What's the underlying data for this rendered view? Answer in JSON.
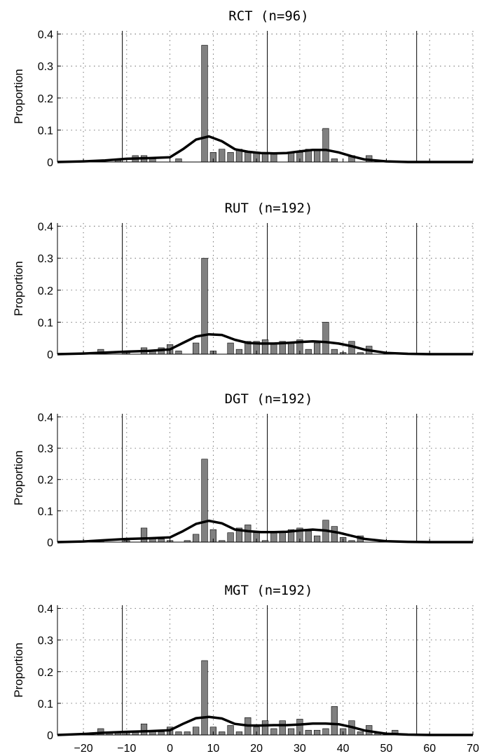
{
  "chart_data": [
    {
      "type": "bar",
      "title": "RCT (n=96)",
      "ylabel": "Proportion",
      "xlim": [
        -26,
        70
      ],
      "ylim": [
        0,
        0.41
      ],
      "yticks": [
        0,
        0.1,
        0.2,
        0.3,
        0.4
      ],
      "xticks": [
        -20,
        -10,
        0,
        10,
        20,
        30,
        40,
        50,
        60,
        70
      ],
      "show_xtick_labels": false,
      "grid": true,
      "vertical_lines": [
        -11,
        22.5,
        57
      ],
      "bar_width": 1.4,
      "bars": {
        "x": [
          -14,
          -12,
          -10,
          -8,
          -6,
          -4,
          -2,
          0,
          2,
          4,
          6,
          8,
          10,
          12,
          14,
          16,
          18,
          20,
          22,
          24,
          26,
          28,
          30,
          32,
          34,
          36,
          38,
          40,
          42,
          44,
          46,
          48
        ],
        "values": [
          0,
          0.005,
          0,
          0.02,
          0.02,
          0.01,
          0,
          0,
          0.01,
          0,
          0,
          0.365,
          0.03,
          0.04,
          0.03,
          0.04,
          0.03,
          0.03,
          0.03,
          0.03,
          0,
          0.03,
          0.03,
          0.04,
          0.04,
          0.105,
          0.01,
          0,
          0.02,
          0,
          0.02,
          0
        ]
      },
      "density": {
        "x": [
          -26,
          -20,
          -15,
          -10,
          -5,
          0,
          3,
          6,
          9,
          12,
          15,
          18,
          21,
          24,
          27,
          30,
          33,
          36,
          39,
          42,
          45,
          50,
          55,
          60,
          65,
          70
        ],
        "y": [
          0,
          0.002,
          0.005,
          0.01,
          0.012,
          0.015,
          0.04,
          0.07,
          0.08,
          0.065,
          0.04,
          0.032,
          0.028,
          0.027,
          0.028,
          0.033,
          0.038,
          0.038,
          0.03,
          0.018,
          0.008,
          0.002,
          0,
          0,
          0,
          0
        ]
      }
    },
    {
      "type": "bar",
      "title": "RUT (n=192)",
      "ylabel": "Proportion",
      "xlim": [
        -26,
        70
      ],
      "ylim": [
        0,
        0.41
      ],
      "yticks": [
        0,
        0.1,
        0.2,
        0.3,
        0.4
      ],
      "xticks": [
        -20,
        -10,
        0,
        10,
        20,
        30,
        40,
        50,
        60,
        70
      ],
      "show_xtick_labels": false,
      "grid": true,
      "vertical_lines": [
        -11,
        22.5,
        57
      ],
      "bar_width": 1.4,
      "bars": {
        "x": [
          -16,
          -14,
          -12,
          -10,
          -8,
          -6,
          -4,
          -2,
          0,
          2,
          4,
          6,
          8,
          10,
          12,
          14,
          16,
          18,
          20,
          22,
          24,
          26,
          28,
          30,
          32,
          34,
          36,
          38,
          40,
          42,
          44,
          46,
          48
        ],
        "values": [
          0.015,
          0,
          0,
          0.005,
          0,
          0.02,
          0.01,
          0.02,
          0.03,
          0.01,
          0,
          0.035,
          0.3,
          0.01,
          0,
          0.035,
          0.015,
          0.04,
          0.04,
          0.045,
          0.035,
          0.04,
          0.035,
          0.045,
          0.015,
          0.035,
          0.1,
          0.015,
          0.005,
          0.04,
          0.005,
          0.025,
          0
        ]
      },
      "density": {
        "x": [
          -26,
          -20,
          -15,
          -10,
          -5,
          0,
          3,
          6,
          9,
          12,
          15,
          18,
          21,
          24,
          27,
          30,
          33,
          36,
          39,
          42,
          45,
          50,
          55,
          60,
          65,
          70
        ],
        "y": [
          0,
          0.002,
          0.005,
          0.008,
          0.01,
          0.015,
          0.035,
          0.055,
          0.062,
          0.06,
          0.045,
          0.035,
          0.033,
          0.033,
          0.035,
          0.038,
          0.04,
          0.038,
          0.033,
          0.025,
          0.014,
          0.004,
          0.001,
          0,
          0,
          0
        ]
      }
    },
    {
      "type": "bar",
      "title": "DGT (n=192)",
      "ylabel": "Proportion",
      "xlim": [
        -26,
        70
      ],
      "ylim": [
        0,
        0.41
      ],
      "yticks": [
        0,
        0.1,
        0.2,
        0.3,
        0.4
      ],
      "xticks": [
        -20,
        -10,
        0,
        10,
        20,
        30,
        40,
        50,
        60,
        70
      ],
      "show_xtick_labels": false,
      "grid": true,
      "vertical_lines": [
        -11,
        22.5,
        57
      ],
      "bar_width": 1.4,
      "bars": {
        "x": [
          -16,
          -14,
          -12,
          -10,
          -8,
          -6,
          -4,
          -2,
          0,
          2,
          4,
          6,
          8,
          10,
          12,
          14,
          16,
          18,
          20,
          22,
          24,
          26,
          28,
          30,
          32,
          34,
          36,
          38,
          40,
          42,
          44,
          46,
          48
        ],
        "values": [
          0.005,
          0,
          0,
          0.005,
          0,
          0.045,
          0.015,
          0.01,
          0.005,
          0,
          0.005,
          0.025,
          0.265,
          0.04,
          0.005,
          0.03,
          0.045,
          0.055,
          0.03,
          0.005,
          0.035,
          0.03,
          0.04,
          0.045,
          0.035,
          0.02,
          0.07,
          0.05,
          0.015,
          0.005,
          0.02,
          0,
          0
        ]
      },
      "density": {
        "x": [
          -26,
          -20,
          -15,
          -10,
          -5,
          0,
          3,
          6,
          9,
          12,
          15,
          18,
          21,
          24,
          27,
          30,
          33,
          36,
          39,
          42,
          45,
          50,
          55,
          60,
          65,
          70
        ],
        "y": [
          0,
          0.002,
          0.006,
          0.01,
          0.012,
          0.015,
          0.035,
          0.058,
          0.068,
          0.06,
          0.04,
          0.035,
          0.032,
          0.032,
          0.033,
          0.037,
          0.04,
          0.037,
          0.03,
          0.02,
          0.01,
          0.003,
          0.001,
          0,
          0,
          0
        ]
      }
    },
    {
      "type": "bar",
      "title": "MGT (n=192)",
      "ylabel": "Proportion",
      "xlim": [
        -26,
        70
      ],
      "ylim": [
        0,
        0.41
      ],
      "yticks": [
        0,
        0.1,
        0.2,
        0.3,
        0.4
      ],
      "xticks": [
        -20,
        -10,
        0,
        10,
        20,
        30,
        40,
        50,
        60,
        70
      ],
      "show_xtick_labels": true,
      "grid": true,
      "vertical_lines": [
        -11,
        22.5,
        57
      ],
      "bar_width": 1.4,
      "bars": {
        "x": [
          -16,
          -14,
          -12,
          -10,
          -8,
          -6,
          -4,
          -2,
          0,
          2,
          4,
          6,
          8,
          10,
          12,
          14,
          16,
          18,
          20,
          22,
          24,
          26,
          28,
          30,
          32,
          34,
          36,
          38,
          40,
          42,
          44,
          46,
          48,
          50,
          52
        ],
        "values": [
          0.02,
          0.005,
          0.01,
          0.01,
          0.01,
          0.035,
          0.01,
          0.01,
          0.025,
          0.01,
          0.01,
          0.025,
          0.235,
          0.025,
          0.01,
          0.03,
          0.01,
          0.055,
          0.025,
          0.045,
          0.02,
          0.045,
          0.02,
          0.05,
          0.015,
          0.015,
          0.02,
          0.09,
          0.02,
          0.045,
          0.01,
          0.03,
          0.005,
          0.005,
          0.015
        ]
      },
      "density": {
        "x": [
          -26,
          -20,
          -15,
          -10,
          -5,
          0,
          3,
          6,
          9,
          12,
          15,
          18,
          21,
          24,
          27,
          30,
          33,
          36,
          39,
          42,
          45,
          50,
          55,
          60,
          65,
          70
        ],
        "y": [
          0,
          0.003,
          0.007,
          0.01,
          0.012,
          0.015,
          0.035,
          0.053,
          0.057,
          0.052,
          0.035,
          0.03,
          0.03,
          0.031,
          0.031,
          0.033,
          0.036,
          0.036,
          0.034,
          0.025,
          0.014,
          0.004,
          0.001,
          0,
          0,
          0
        ]
      }
    }
  ]
}
